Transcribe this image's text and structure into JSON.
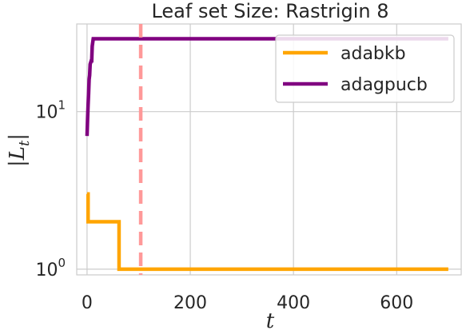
{
  "chart_data": {
    "type": "line",
    "title": "Leaf set Size: Rastrigin 8",
    "xlabel": "t",
    "ylabel": "|L_t|",
    "xlim": [
      -20,
      725
    ],
    "ylim": [
      0.92,
      36
    ],
    "yscale": "log",
    "grid": true,
    "legend_position": "top-right",
    "x_ticks": [
      {
        "value": 0,
        "label": "0"
      },
      {
        "value": 200,
        "label": "200"
      },
      {
        "value": 400,
        "label": "400"
      },
      {
        "value": 600,
        "label": "600"
      }
    ],
    "y_ticks": [
      {
        "value": 1,
        "base": "10",
        "exp": "0"
      },
      {
        "value": 10,
        "base": "10",
        "exp": "1"
      }
    ],
    "vline": {
      "x": 104,
      "color": "#ff9999",
      "style": "dashed"
    },
    "series": [
      {
        "name": "adabkb",
        "color": "#ffa500",
        "points": [
          [
            0,
            3
          ],
          [
            2,
            3
          ],
          [
            2,
            2
          ],
          [
            62,
            2
          ],
          [
            62,
            1
          ],
          [
            700,
            1
          ]
        ]
      },
      {
        "name": "adagpucb",
        "color": "#800080",
        "points": [
          [
            0,
            7
          ],
          [
            1,
            9
          ],
          [
            2,
            11
          ],
          [
            3,
            13
          ],
          [
            4,
            16
          ],
          [
            5,
            17
          ],
          [
            6,
            20
          ],
          [
            8,
            21
          ],
          [
            9,
            21
          ],
          [
            10,
            26
          ],
          [
            12,
            29
          ],
          [
            700,
            29
          ]
        ]
      }
    ]
  }
}
